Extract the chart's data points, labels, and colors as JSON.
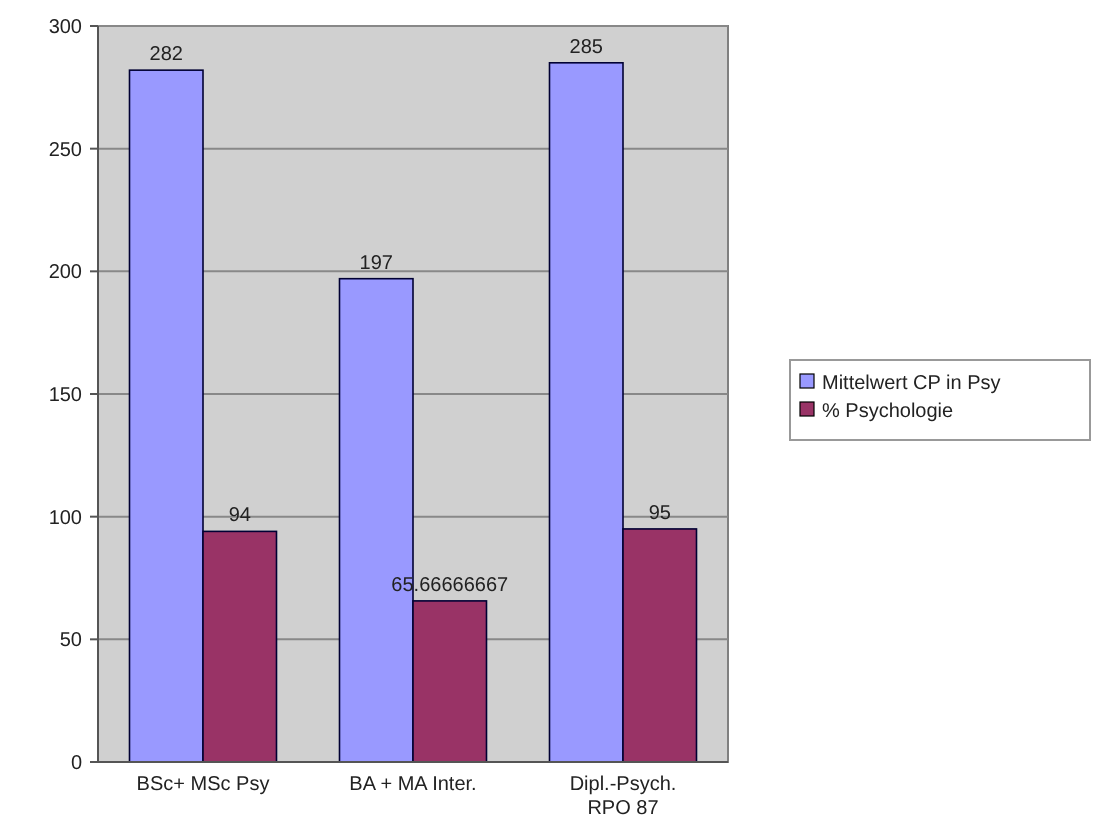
{
  "chart_data": {
    "type": "bar",
    "categories": [
      "BSc+ MSc Psy",
      "BA + MA Inter.",
      "Dipl.-Psych. RPO 87"
    ],
    "series": [
      {
        "name": "Mittelwert CP in Psy",
        "color": "#9999ff",
        "values": [
          282,
          197,
          285
        ]
      },
      {
        "name": "% Psychologie",
        "color": "#993366",
        "values": [
          94,
          65.66666667,
          95
        ]
      }
    ],
    "ylim": [
      0,
      300
    ],
    "yticks": [
      0,
      50,
      100,
      150,
      200,
      250,
      300
    ],
    "grid": "y",
    "legend": "right",
    "data_labels": true
  }
}
